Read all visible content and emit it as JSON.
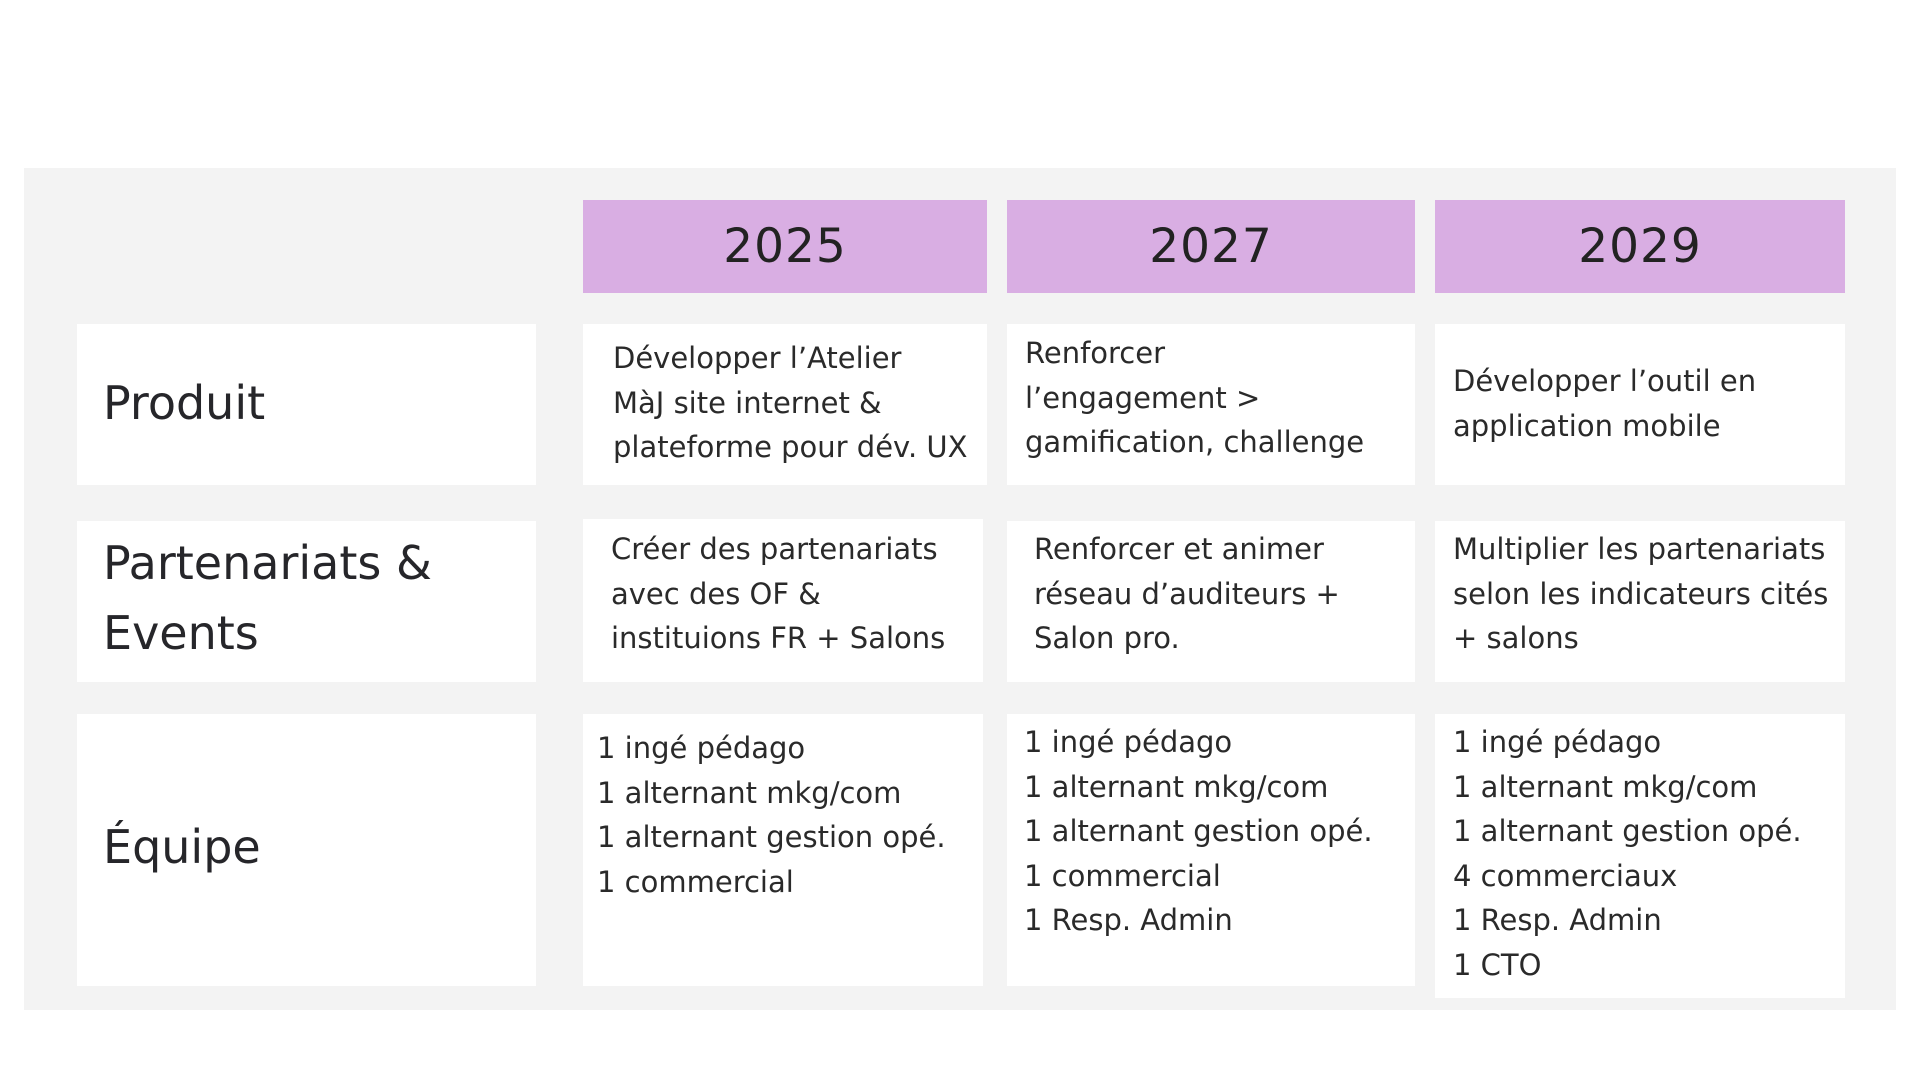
{
  "years": [
    "2025",
    "2027",
    "2029"
  ],
  "rows": [
    {
      "label": "Produit",
      "cells": [
        "Développer l’Atelier\nMàJ site internet &\nplateforme pour dév. UX",
        "Renforcer\nl’engagement >\ngamification, challenge",
        "Développer l’outil en\napplication mobile"
      ]
    },
    {
      "label": "Partenariats &\nEvents",
      "cells": [
        "Créer des partenariats\navec des OF &\ninstituions FR + Salons",
        "Renforcer et animer\nréseau d’auditeurs +\nSalon pro.",
        "Multiplier les partenariats\nselon les indicateurs cités\n+ salons"
      ]
    },
    {
      "label": "Équipe",
      "cells": [
        "1 ingé pédago\n1 alternant mkg/com\n1 alternant gestion opé.\n1 commercial",
        "1 ingé pédago\n1 alternant mkg/com\n1 alternant gestion opé.\n1 commercial\n1 Resp. Admin",
        "1 ingé pédago\n1 alternant mkg/com\n1 alternant gestion opé.\n4 commerciaux\n1 Resp. Admin\n1 CTO"
      ]
    }
  ]
}
